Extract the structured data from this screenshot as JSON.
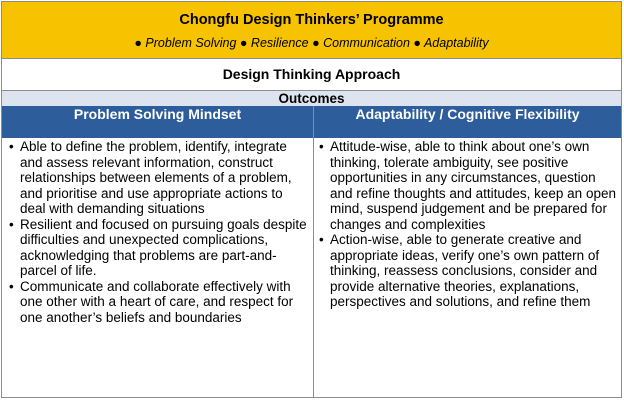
{
  "banner": {
    "title": "Chongfu Design Thinkers’ Programme",
    "tags": "● Problem Solving ● Resilience ● Communication ● Adaptability"
  },
  "approach": "Design Thinking Approach",
  "outcomes": "Outcomes",
  "columns": {
    "left_header": "Problem Solving Mindset",
    "right_header": "Adaptability / Cognitive Flexibility"
  },
  "left_items": [
    "Able to define the problem, identify, integrate and assess relevant information, construct relationships between elements of a problem, and prioritise and use appropriate actions to deal with demanding situations",
    "Resilient and focused on pursuing goals despite difficulties and unexpected complications, acknowledging that problems are part-and-parcel of life.",
    "Communicate and collaborate effectively with one other with a heart of care, and respect for one another’s beliefs and boundaries"
  ],
  "right_items": [
    "Attitude-wise, able to think about one’s own thinking,  tolerate ambiguity, see positive opportunities in any circumstances, question and refine thoughts and attitudes, keep an open mind, suspend judgement and be prepared for changes and complexities",
    "Action-wise, able to generate creative and appropriate ideas, verify one’s own pattern of thinking, reassess conclusions, consider and provide alternative theories, explanations, perspectives and solutions, and refine them"
  ],
  "bullet": "•",
  "colors": {
    "banner": "#f7c200",
    "outcomes": "#dde4ef",
    "column_header": "#2d5e9b"
  }
}
